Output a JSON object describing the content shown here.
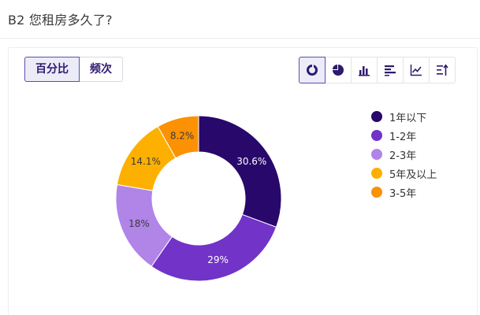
{
  "question": {
    "title": "B2 您租房多久了?"
  },
  "mode_toggle": {
    "options": [
      {
        "label": "百分比",
        "active": true
      },
      {
        "label": "频次",
        "active": false
      }
    ]
  },
  "chart_toolbar": {
    "buttons": [
      {
        "icon": "donut-chart-icon",
        "active": true
      },
      {
        "icon": "pie-chart-icon",
        "active": false
      },
      {
        "icon": "bar-chart-icon",
        "active": false
      },
      {
        "icon": "horizontal-bar-chart-icon",
        "active": false
      },
      {
        "icon": "line-chart-icon",
        "active": false
      },
      {
        "icon": "sort-icon",
        "active": false
      }
    ],
    "accent_color": "#2e1a6e"
  },
  "chart_data": {
    "type": "pie",
    "style": "donut",
    "categories": [
      "1年以下",
      "1-2年",
      "2-3年",
      "5年及以上",
      "3-5年"
    ],
    "values": [
      30.6,
      29,
      18,
      14.1,
      8.2
    ],
    "value_labels": [
      "30.6%",
      "29%",
      "18%",
      "14.1%",
      "8.2%"
    ],
    "colors": [
      "#28086b",
      "#7133c8",
      "#b184e8",
      "#fdb000",
      "#fb9103"
    ],
    "label_colors": [
      "#ffffff",
      "#ffffff",
      "#3a3a3a",
      "#3a3a3a",
      "#3a3a3a"
    ],
    "legend_position": "right"
  }
}
